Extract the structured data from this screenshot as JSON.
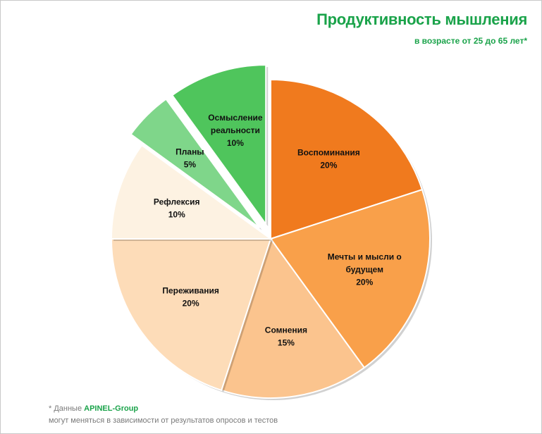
{
  "title": "Продуктивность мышления",
  "subtitle": "в возрасте от 25 до 65 лет*",
  "footnote": {
    "prefix": "* Данные ",
    "brand": "APINEL-Group",
    "line2": "могут меняться в зависимости от результатов опросов и тестов"
  },
  "chart_data": {
    "type": "pie",
    "slices": [
      {
        "label": [
          "Воспоминания"
        ],
        "value_text": "20%",
        "value": 20,
        "color": "#f07a1e"
      },
      {
        "label": [
          "Мечты и мысли о",
          "будущем"
        ],
        "value_text": "20%",
        "value": 20,
        "color": "#f9a04a"
      },
      {
        "label": [
          "Сомнения"
        ],
        "value_text": "15%",
        "value": 15,
        "color": "#fbc48e"
      },
      {
        "label": [
          "Переживания"
        ],
        "value_text": "20%",
        "value": 20,
        "color": "#fddcb8"
      },
      {
        "label": [
          "Рефлексия"
        ],
        "value_text": "10%",
        "value": 10,
        "color": "#fdf2e2"
      },
      {
        "label": [
          "Планы"
        ],
        "value_text": "5%",
        "value": 5,
        "color": "#7fd68a",
        "exploded": true
      },
      {
        "label": [
          "Осмысление",
          "реальности"
        ],
        "value_text": "10%",
        "value": 10,
        "color": "#4fc55c",
        "exploded": true
      }
    ]
  }
}
